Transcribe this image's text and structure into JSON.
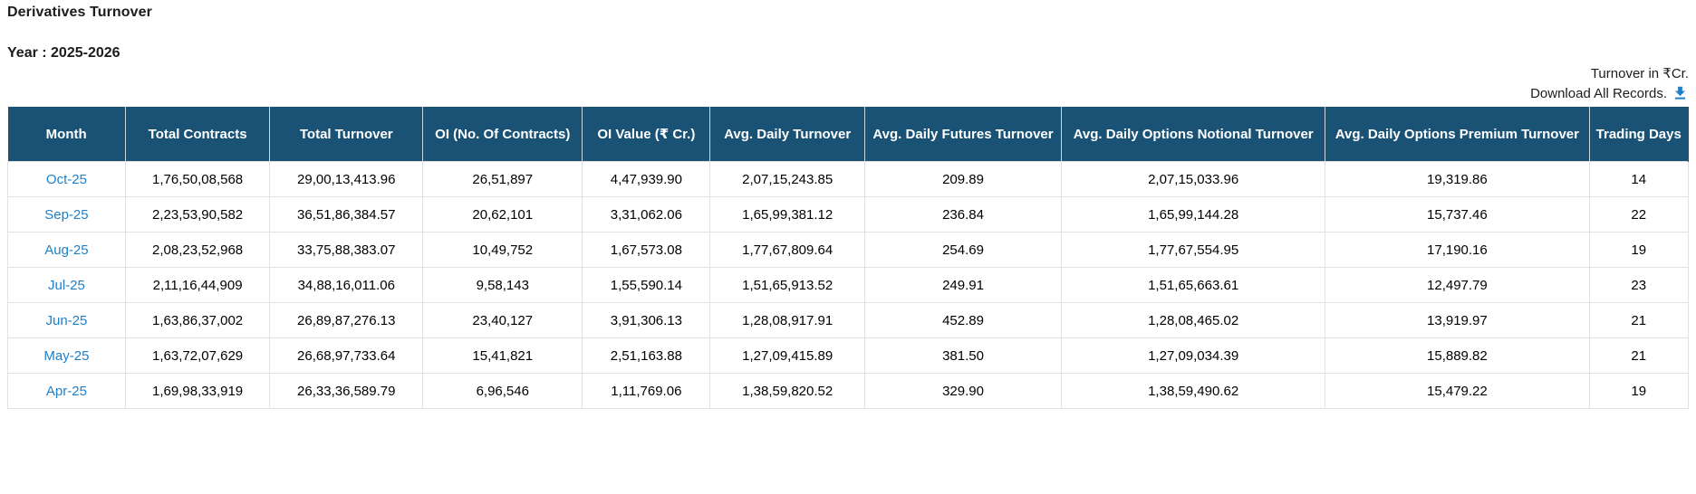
{
  "page": {
    "title": "Derivatives Turnover",
    "year_label": "Year : 2025-2026",
    "turnover_note": "Turnover in ₹Cr.",
    "download_label": "Download All Records."
  },
  "icons": {
    "download_icon": "download-icon"
  },
  "colors": {
    "header_bg": "#1a5276",
    "link_blue": "#1e80c7",
    "download_icon_blue": "#1e80c7",
    "row_border": "#e2e2e2"
  },
  "table": {
    "columns": [
      {
        "key": "month",
        "label": "Month"
      },
      {
        "key": "total_contracts",
        "label": "Total Contracts"
      },
      {
        "key": "total_turnover",
        "label": "Total Turnover"
      },
      {
        "key": "oi_no_of_contracts",
        "label": "OI (No. Of Contracts)"
      },
      {
        "key": "oi_value_cr",
        "label": "OI Value (₹ Cr.)"
      },
      {
        "key": "avg_daily_turnover",
        "label": "Avg. Daily Turnover"
      },
      {
        "key": "avg_daily_futures_turnover",
        "label": "Avg. Daily Futures Turnover"
      },
      {
        "key": "avg_daily_options_notional_turnover",
        "label": "Avg. Daily Options Notional Turnover"
      },
      {
        "key": "avg_daily_options_premium_turnover",
        "label": "Avg. Daily Options Premium Turnover"
      },
      {
        "key": "trading_days",
        "label": "Trading Days"
      }
    ],
    "rows": [
      {
        "month": "Oct-25",
        "total_contracts": "1,76,50,08,568",
        "total_turnover": "29,00,13,413.96",
        "oi_no_of_contracts": "26,51,897",
        "oi_value_cr": "4,47,939.90",
        "avg_daily_turnover": "2,07,15,243.85",
        "avg_daily_futures_turnover": "209.89",
        "avg_daily_options_notional_turnover": "2,07,15,033.96",
        "avg_daily_options_premium_turnover": "19,319.86",
        "trading_days": "14"
      },
      {
        "month": "Sep-25",
        "total_contracts": "2,23,53,90,582",
        "total_turnover": "36,51,86,384.57",
        "oi_no_of_contracts": "20,62,101",
        "oi_value_cr": "3,31,062.06",
        "avg_daily_turnover": "1,65,99,381.12",
        "avg_daily_futures_turnover": "236.84",
        "avg_daily_options_notional_turnover": "1,65,99,144.28",
        "avg_daily_options_premium_turnover": "15,737.46",
        "trading_days": "22"
      },
      {
        "month": "Aug-25",
        "total_contracts": "2,08,23,52,968",
        "total_turnover": "33,75,88,383.07",
        "oi_no_of_contracts": "10,49,752",
        "oi_value_cr": "1,67,573.08",
        "avg_daily_turnover": "1,77,67,809.64",
        "avg_daily_futures_turnover": "254.69",
        "avg_daily_options_notional_turnover": "1,77,67,554.95",
        "avg_daily_options_premium_turnover": "17,190.16",
        "trading_days": "19"
      },
      {
        "month": "Jul-25",
        "total_contracts": "2,11,16,44,909",
        "total_turnover": "34,88,16,011.06",
        "oi_no_of_contracts": "9,58,143",
        "oi_value_cr": "1,55,590.14",
        "avg_daily_turnover": "1,51,65,913.52",
        "avg_daily_futures_turnover": "249.91",
        "avg_daily_options_notional_turnover": "1,51,65,663.61",
        "avg_daily_options_premium_turnover": "12,497.79",
        "trading_days": "23"
      },
      {
        "month": "Jun-25",
        "total_contracts": "1,63,86,37,002",
        "total_turnover": "26,89,87,276.13",
        "oi_no_of_contracts": "23,40,127",
        "oi_value_cr": "3,91,306.13",
        "avg_daily_turnover": "1,28,08,917.91",
        "avg_daily_futures_turnover": "452.89",
        "avg_daily_options_notional_turnover": "1,28,08,465.02",
        "avg_daily_options_premium_turnover": "13,919.97",
        "trading_days": "21"
      },
      {
        "month": "May-25",
        "total_contracts": "1,63,72,07,629",
        "total_turnover": "26,68,97,733.64",
        "oi_no_of_contracts": "15,41,821",
        "oi_value_cr": "2,51,163.88",
        "avg_daily_turnover": "1,27,09,415.89",
        "avg_daily_futures_turnover": "381.50",
        "avg_daily_options_notional_turnover": "1,27,09,034.39",
        "avg_daily_options_premium_turnover": "15,889.82",
        "trading_days": "21"
      },
      {
        "month": "Apr-25",
        "total_contracts": "1,69,98,33,919",
        "total_turnover": "26,33,36,589.79",
        "oi_no_of_contracts": "6,96,546",
        "oi_value_cr": "1,11,769.06",
        "avg_daily_turnover": "1,38,59,820.52",
        "avg_daily_futures_turnover": "329.90",
        "avg_daily_options_notional_turnover": "1,38,59,490.62",
        "avg_daily_options_premium_turnover": "15,479.22",
        "trading_days": "19"
      }
    ]
  }
}
